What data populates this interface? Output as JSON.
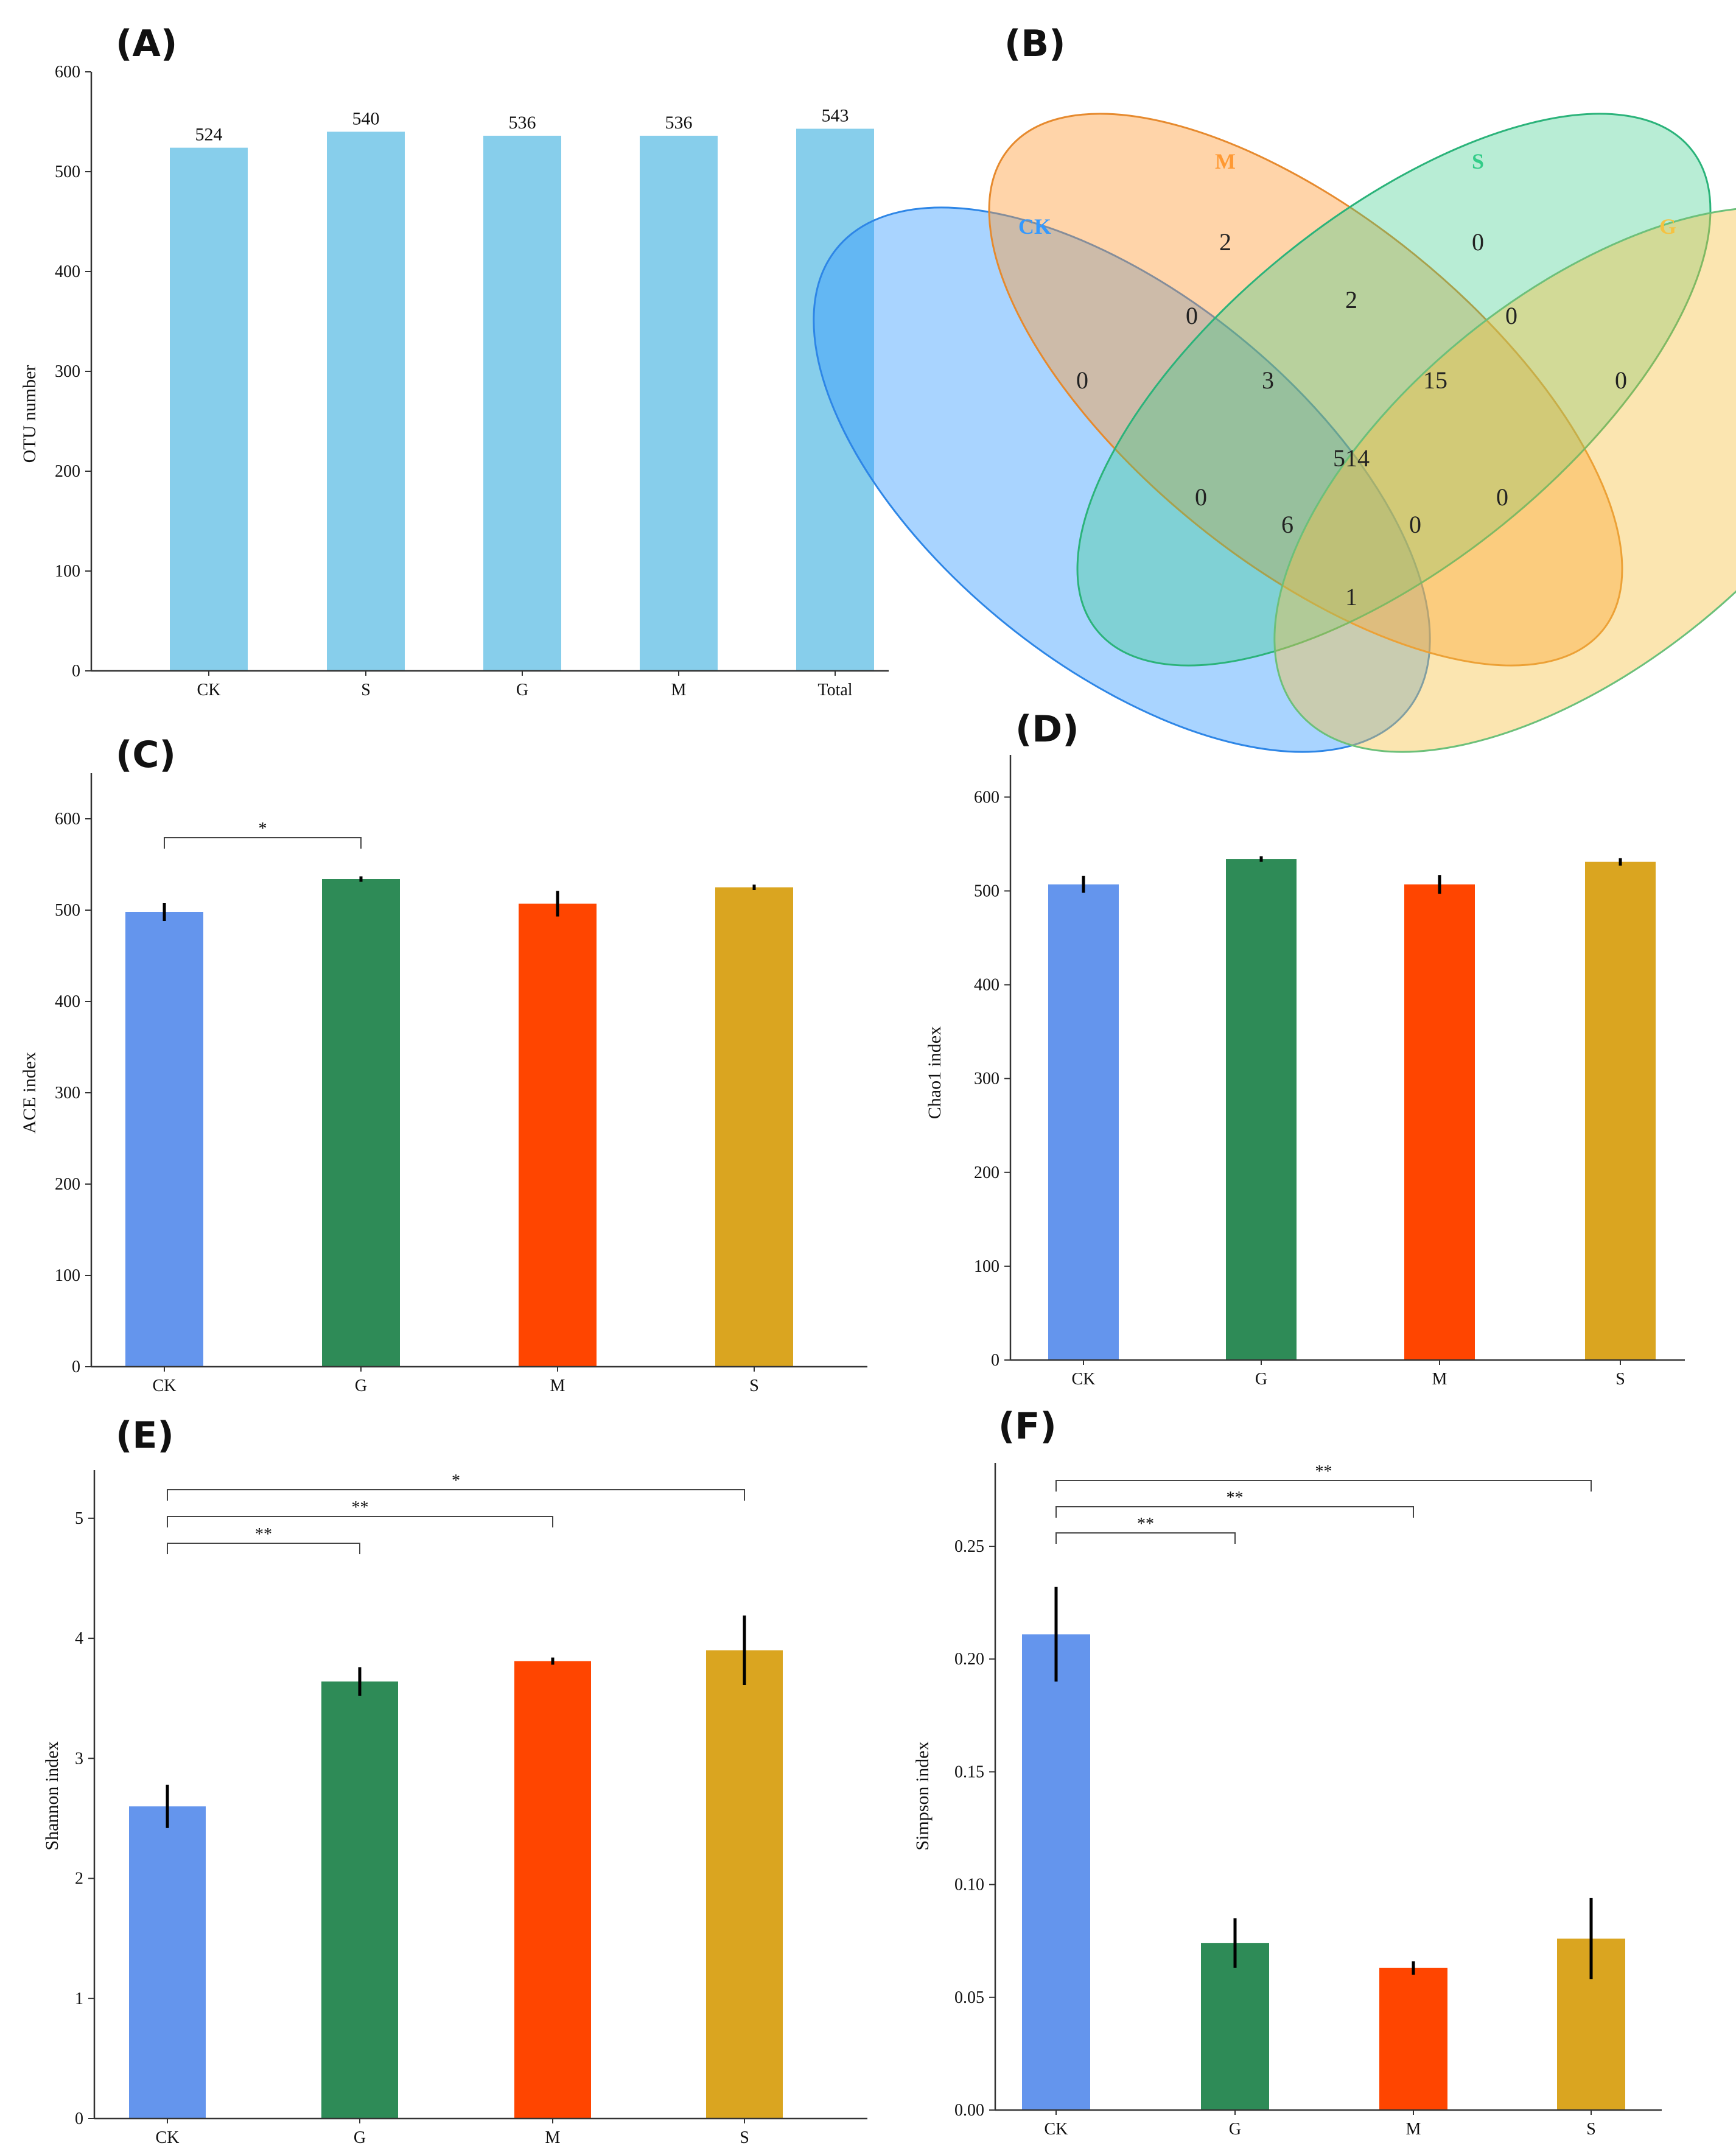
{
  "chart_data": [
    {
      "panel": "(A)",
      "type": "bar",
      "categories": [
        "CK",
        "S",
        "G",
        "M",
        "Total"
      ],
      "values": [
        524,
        540,
        536,
        536,
        543
      ],
      "data_labels": [
        "524",
        "540",
        "536",
        "536",
        "543"
      ],
      "ylabel": "OTU number",
      "ylim": [
        0,
        600
      ],
      "yticks": [
        0,
        100,
        200,
        300,
        400,
        500,
        600
      ],
      "bar_color": "#87CEEB"
    },
    {
      "panel": "(B)",
      "type": "venn",
      "sets": [
        {
          "name": "CK",
          "color": "#3399FF"
        },
        {
          "name": "M",
          "color": "#FF9933"
        },
        {
          "name": "S",
          "color": "#33CC88"
        },
        {
          "name": "G",
          "color": "#F5C242"
        }
      ],
      "regions": [
        {
          "sets": [
            "CK"
          ],
          "value": "0"
        },
        {
          "sets": [
            "M"
          ],
          "value": "2"
        },
        {
          "sets": [
            "S"
          ],
          "value": "0"
        },
        {
          "sets": [
            "G"
          ],
          "value": "0"
        },
        {
          "sets": [
            "CK",
            "M"
          ],
          "value": "0"
        },
        {
          "sets": [
            "M",
            "S"
          ],
          "value": "2"
        },
        {
          "sets": [
            "S",
            "G"
          ],
          "value": "0"
        },
        {
          "sets": [
            "CK",
            "M",
            "S"
          ],
          "value": "3"
        },
        {
          "sets": [
            "M",
            "S",
            "G"
          ],
          "value": "15"
        },
        {
          "sets": [
            "CK",
            "M",
            "S",
            "G"
          ],
          "value": "514"
        },
        {
          "sets": [
            "CK",
            "S"
          ],
          "value": "0"
        },
        {
          "sets": [
            "M",
            "G"
          ],
          "value": "0"
        },
        {
          "sets": [
            "CK",
            "S",
            "G"
          ],
          "value": "6"
        },
        {
          "sets": [
            "CK",
            "M",
            "G"
          ],
          "value": "0"
        },
        {
          "sets": [
            "CK",
            "G"
          ],
          "value": "1"
        }
      ]
    },
    {
      "panel": "(C)",
      "type": "bar",
      "categories": [
        "CK",
        "G",
        "M",
        "S"
      ],
      "values": [
        498,
        534,
        507,
        525
      ],
      "errors": [
        10,
        3,
        14,
        3
      ],
      "ylabel": "ACE index",
      "ylim": [
        0,
        650
      ],
      "yticks": [
        0,
        100,
        200,
        300,
        400,
        500,
        600
      ],
      "significance": [
        {
          "from": 0,
          "to": 1,
          "label": "*"
        }
      ]
    },
    {
      "panel": "(D)",
      "type": "bar",
      "categories": [
        "CK",
        "G",
        "M",
        "S"
      ],
      "values": [
        507,
        534,
        507,
        531
      ],
      "errors": [
        9,
        3,
        10,
        4
      ],
      "ylabel": "Chao1 index",
      "ylim": [
        0,
        645
      ],
      "yticks": [
        0,
        100,
        200,
        300,
        400,
        500,
        600
      ],
      "significance": []
    },
    {
      "panel": "(E)",
      "type": "bar",
      "categories": [
        "CK",
        "G",
        "M",
        "S"
      ],
      "values": [
        2.6,
        3.64,
        3.81,
        3.9
      ],
      "errors": [
        0.18,
        0.12,
        0.03,
        0.29
      ],
      "ylabel": "Shannon index",
      "ylim": [
        0,
        5.4
      ],
      "yticks": [
        0,
        1,
        2,
        3,
        4,
        5
      ],
      "significance": [
        {
          "from": 0,
          "to": 1,
          "label": "**"
        },
        {
          "from": 0,
          "to": 2,
          "label": "**"
        },
        {
          "from": 0,
          "to": 3,
          "label": "*"
        }
      ]
    },
    {
      "panel": "(F)",
      "type": "bar",
      "categories": [
        "CK",
        "G",
        "M",
        "S"
      ],
      "values": [
        0.211,
        0.074,
        0.063,
        0.076
      ],
      "errors": [
        0.021,
        0.011,
        0.003,
        0.018
      ],
      "ylabel": "Simpson index",
      "ylim": [
        0,
        0.287
      ],
      "yticks": [
        "0.00",
        "0.05",
        "0.10",
        "0.15",
        "0.20",
        "0.25"
      ],
      "significance": [
        {
          "from": 0,
          "to": 1,
          "label": "**"
        },
        {
          "from": 0,
          "to": 2,
          "label": "**"
        },
        {
          "from": 0,
          "to": 3,
          "label": "**"
        }
      ]
    }
  ],
  "group_colors": {
    "CK": "#6495ED",
    "G": "#2E8B57",
    "M": "#FF4500",
    "S": "#DAA520"
  }
}
